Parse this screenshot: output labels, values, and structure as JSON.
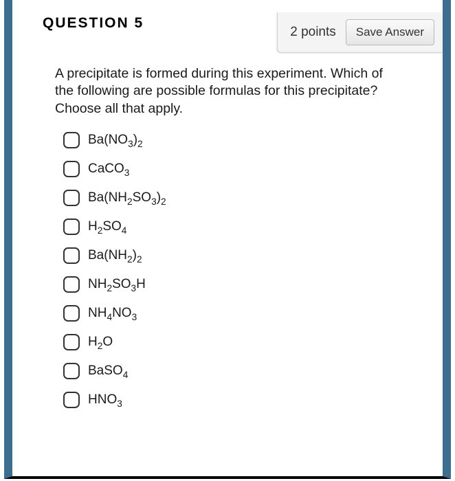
{
  "header": {
    "title": "QUESTION 5",
    "points": "2 points",
    "save_label": "Save Answer"
  },
  "prompt": "A precipitate is formed during this experiment. Which of the following are possible formulas for this precipitate? Choose all that apply.",
  "options": [
    {
      "parts": [
        [
          "Ba(NO",
          ""
        ],
        [
          "3",
          "sub"
        ],
        [
          ")",
          ""
        ],
        [
          "2",
          "sub"
        ]
      ]
    },
    {
      "parts": [
        [
          "CaCO",
          ""
        ],
        [
          "3",
          "sub"
        ]
      ]
    },
    {
      "parts": [
        [
          "Ba(NH",
          ""
        ],
        [
          "2",
          "sub"
        ],
        [
          "SO",
          ""
        ],
        [
          "3",
          "sub"
        ],
        [
          ")",
          ""
        ],
        [
          "2",
          "sub"
        ]
      ]
    },
    {
      "parts": [
        [
          "H",
          ""
        ],
        [
          "2",
          "sub"
        ],
        [
          "SO",
          ""
        ],
        [
          "4",
          "sub"
        ]
      ]
    },
    {
      "parts": [
        [
          "Ba(NH",
          ""
        ],
        [
          "2",
          "sub"
        ],
        [
          ")",
          ""
        ],
        [
          "2",
          "sub"
        ]
      ]
    },
    {
      "parts": [
        [
          "NH",
          ""
        ],
        [
          "2",
          "sub"
        ],
        [
          "SO",
          ""
        ],
        [
          "3",
          "sub"
        ],
        [
          "H",
          ""
        ]
      ]
    },
    {
      "parts": [
        [
          "NH",
          ""
        ],
        [
          "4",
          "sub"
        ],
        [
          "NO",
          ""
        ],
        [
          "3",
          "sub"
        ]
      ]
    },
    {
      "parts": [
        [
          "H",
          ""
        ],
        [
          "2",
          "sub"
        ],
        [
          "O",
          ""
        ]
      ]
    },
    {
      "parts": [
        [
          "BaSO",
          ""
        ],
        [
          "4",
          "sub"
        ]
      ]
    },
    {
      "parts": [
        [
          "HNO",
          ""
        ],
        [
          "3",
          "sub"
        ]
      ]
    }
  ],
  "colors": {
    "frame_border": "#3b6e8f",
    "checkbox_border": "#333333"
  }
}
